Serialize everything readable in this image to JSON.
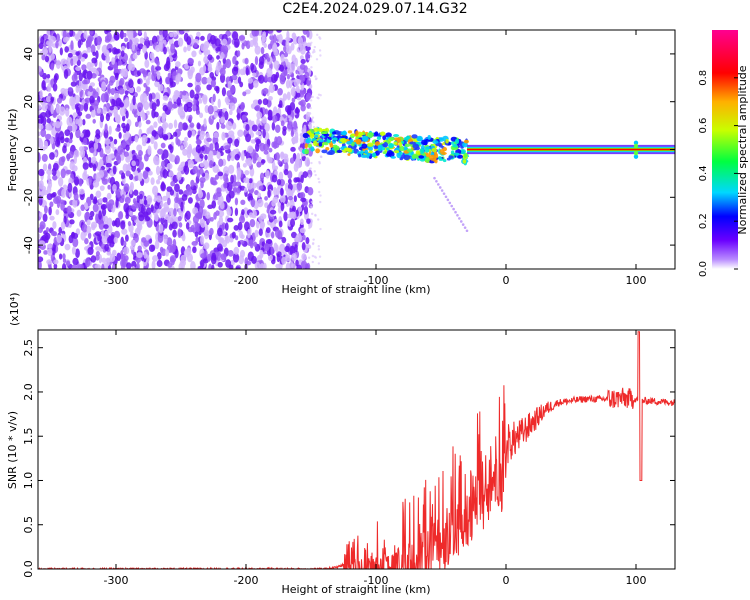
{
  "title": "C2E4.2024.029.07.14.G32",
  "chart_data": [
    {
      "type": "heatmap",
      "xlabel": "Height of straight line (km)",
      "ylabel": "Frequency (Hz)",
      "xlim": [
        -360,
        130
      ],
      "ylim": [
        -50,
        50
      ],
      "xticks": [
        -300,
        -200,
        -100,
        0,
        100
      ],
      "yticks": [
        -40,
        -20,
        0,
        20,
        40
      ],
      "colorbar": {
        "label": "Normalized spectral amplitude",
        "range": [
          0.0,
          1.0
        ],
        "ticks": [
          "0.0",
          "0.2",
          "0.4",
          "0.6",
          "0.8"
        ],
        "colors": [
          "#ffffff",
          "#6a00ff",
          "#0000ff",
          "#00d8ff",
          "#00ff40",
          "#c8ff00",
          "#ffb000",
          "#ff0000",
          "#ff0090"
        ]
      },
      "regions": [
        {
          "x_range": [
            -360,
            -150
          ],
          "y_range": [
            -50,
            50
          ],
          "pattern": "noise",
          "amplitude": 0.05
        },
        {
          "x_range": [
            -155,
            -30
          ],
          "y_range": [
            -8,
            8
          ],
          "pattern": "scattered signal near 0 Hz",
          "amplitude": 0.5
        },
        {
          "x_range": [
            -30,
            130
          ],
          "y_range": [
            -1,
            1
          ],
          "pattern": "steady line at 0 Hz",
          "amplitude": 1.0
        }
      ],
      "grid": false
    },
    {
      "type": "line",
      "xlabel": "Height of straight line (km)",
      "ylabel": "SNR (10 * v/v)",
      "y_multiplier": "(x10⁴)",
      "xlim": [
        -360,
        130
      ],
      "ylim": [
        0,
        2.7
      ],
      "xticks": [
        -300,
        -200,
        -100,
        0,
        100
      ],
      "yticks": [
        "0.0",
        "0.5",
        "1.0",
        "1.5",
        "2.0",
        "2.5"
      ],
      "color": "#ee2a2a",
      "series": [
        {
          "x": [
            -360,
            -300,
            -250,
            -200,
            -160,
            -140,
            -130,
            -120,
            -110,
            -100,
            -90,
            -80,
            -70,
            -60,
            -50,
            -40,
            -30,
            -20,
            -15,
            -10,
            -5,
            0,
            10,
            20,
            30,
            40,
            60,
            80,
            90,
            100,
            103,
            110,
            120,
            130
          ],
          "y": [
            0.0,
            0.0,
            0.0,
            0.0,
            0.0,
            0.0,
            0.02,
            0.08,
            0.12,
            0.15,
            0.2,
            0.25,
            0.35,
            0.45,
            0.6,
            0.8,
            1.0,
            1.2,
            1.25,
            1.3,
            1.35,
            1.4,
            1.5,
            1.65,
            1.8,
            1.88,
            1.92,
            1.92,
            1.93,
            1.92,
            1.9,
            1.9,
            1.89,
            1.88
          ]
        }
      ],
      "grid": false
    }
  ]
}
